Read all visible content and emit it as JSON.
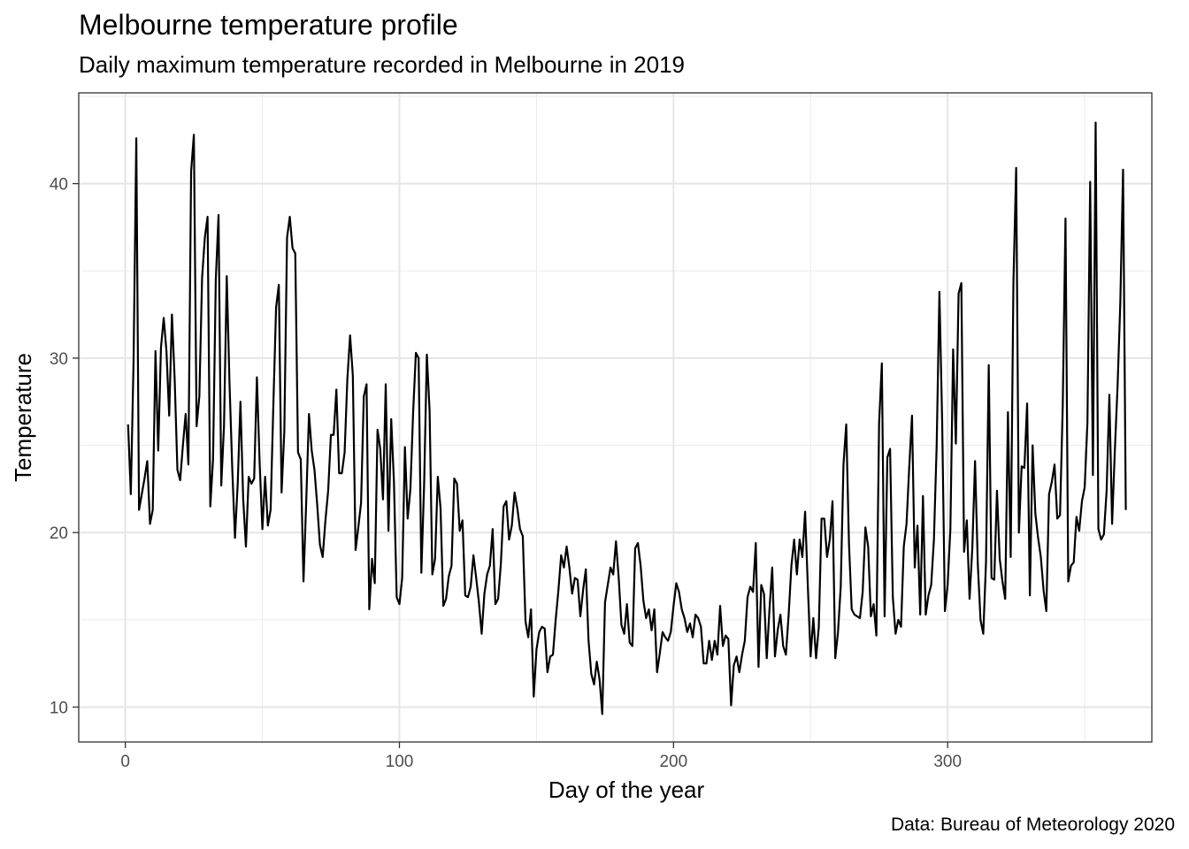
{
  "chart_data": {
    "type": "line",
    "title": "Melbourne temperature profile",
    "subtitle": "Daily maximum temperature recorded in Melbourne in 2019",
    "xlabel": "Day of the year",
    "ylabel": "Temperature",
    "caption": "Data: Bureau of Meteorology 2020",
    "xlim": [
      -17,
      374.5
    ],
    "ylim": [
      8,
      45.2
    ],
    "x_ticks": [
      0,
      100,
      200,
      300
    ],
    "x_tick_labels": [
      "0",
      "100",
      "200",
      "300"
    ],
    "y_ticks": [
      10,
      20,
      30,
      40
    ],
    "y_tick_labels": [
      "10",
      "20",
      "30",
      "40"
    ],
    "grid": true,
    "series": [
      {
        "name": "Daily maximum temperature",
        "start_day": 1,
        "values": [
          26.2,
          22.2,
          29.8,
          42.6,
          21.3,
          22.2,
          23.1,
          24.1,
          20.5,
          21.3,
          30.4,
          24.7,
          30.6,
          32.3,
          30.4,
          26.7,
          32.5,
          28.8,
          23.6,
          23.0,
          25.0,
          26.8,
          23.9,
          40.7,
          42.8,
          26.1,
          27.8,
          34.6,
          36.9,
          38.1,
          21.5,
          24.2,
          34.5,
          38.2,
          22.7,
          26.1,
          34.7,
          28.6,
          23.7,
          19.7,
          22.8,
          27.5,
          21.9,
          19.2,
          23.2,
          22.8,
          23.1,
          28.9,
          24.0,
          20.2,
          23.2,
          20.4,
          21.3,
          27.3,
          32.9,
          34.2,
          22.3,
          25.8,
          36.9,
          38.1,
          36.3,
          36.0,
          24.6,
          24.2,
          17.2,
          21.8,
          26.8,
          24.7,
          23.6,
          21.6,
          19.3,
          18.6,
          20.7,
          22.4,
          25.6,
          25.6,
          28.2,
          23.4,
          23.4,
          24.6,
          28.8,
          31.3,
          29.0,
          19.0,
          20.3,
          21.7,
          27.8,
          28.5,
          15.6,
          18.5,
          17.1,
          25.9,
          24.8,
          21.9,
          28.5,
          20.1,
          26.5,
          22.9,
          16.3,
          15.9,
          17.4,
          24.9,
          20.8,
          22.5,
          26.9,
          30.3,
          30.0,
          17.7,
          22.7,
          30.2,
          27.0,
          17.6,
          18.5,
          23.2,
          21.4,
          15.8,
          16.2,
          17.5,
          18.1,
          23.1,
          22.8,
          20.1,
          20.7,
          16.4,
          16.3,
          16.9,
          18.7,
          17.4,
          16.0,
          14.2,
          16.5,
          17.6,
          18.1,
          20.2,
          15.9,
          16.2,
          18.2,
          21.5,
          21.8,
          19.6,
          20.4,
          22.3,
          21.4,
          20.2,
          19.8,
          14.9,
          14.0,
          15.6,
          10.6,
          13.3,
          14.3,
          14.6,
          14.5,
          12.0,
          12.9,
          13.0,
          15.0,
          16.7,
          18.7,
          18.0,
          19.2,
          18.0,
          16.5,
          17.4,
          17.3,
          15.2,
          16.7,
          17.9,
          13.8,
          11.9,
          11.3,
          12.6,
          11.6,
          9.6,
          16.0,
          17.0,
          18.0,
          17.6,
          19.5,
          17.4,
          14.7,
          14.2,
          15.9,
          13.7,
          13.5,
          19.1,
          19.4,
          18.1,
          16.1,
          15.1,
          15.6,
          14.4,
          15.6,
          12.0,
          13.1,
          14.3,
          14.0,
          13.8,
          14.3,
          15.8,
          17.1,
          16.6,
          15.6,
          15.1,
          14.3,
          14.8,
          14.0,
          15.3,
          15.1,
          14.6,
          12.5,
          12.5,
          13.8,
          12.7,
          13.8,
          13.0,
          15.8,
          13.5,
          14.1,
          13.9,
          10.1,
          12.4,
          12.9,
          12.0,
          13.0,
          13.8,
          16.3,
          16.9,
          16.6,
          19.4,
          12.3,
          17.0,
          16.5,
          12.8,
          15.6,
          18.0,
          12.9,
          14.4,
          15.3,
          13.5,
          13.0,
          15.3,
          18.1,
          19.6,
          17.6,
          19.6,
          18.6,
          21.2,
          16.9,
          12.9,
          15.1,
          12.8,
          14.6,
          20.8,
          20.8,
          18.6,
          19.6,
          21.8,
          12.8,
          14.3,
          16.9,
          23.9,
          26.2,
          19.4,
          15.6,
          15.3,
          15.2,
          15.1,
          16.6,
          20.3,
          19.2,
          15.2,
          15.9,
          14.1,
          26.3,
          29.7,
          15.2,
          24.3,
          24.8,
          16.3,
          14.2,
          15.0,
          14.6,
          19.2,
          20.5,
          23.8,
          26.7,
          18.0,
          20.4,
          15.3,
          22.1,
          15.3,
          16.4,
          17.0,
          19.6,
          25.0,
          33.8,
          26.4,
          15.5,
          17.0,
          20.2,
          30.5,
          25.1,
          33.7,
          34.3,
          18.9,
          20.7,
          16.2,
          19.1,
          24.1,
          18.2,
          15.0,
          14.2,
          18.3,
          29.6,
          17.4,
          17.3,
          22.4,
          18.5,
          17.2,
          16.2,
          26.9,
          18.6,
          34.3,
          40.9,
          20.0,
          23.8,
          23.7,
          27.4,
          16.4,
          25.0,
          21.1,
          19.7,
          18.6,
          16.7,
          15.5,
          22.2,
          22.9,
          23.9,
          20.8,
          21.0,
          27.3,
          38.0,
          17.2,
          18.1,
          18.3,
          20.9,
          20.1,
          21.8,
          22.6,
          26.3,
          40.1,
          23.3,
          43.5,
          20.2,
          19.6,
          19.9,
          22.4,
          27.9,
          20.5,
          24.7,
          28.4,
          33.2,
          40.8,
          21.3
        ]
      }
    ]
  }
}
